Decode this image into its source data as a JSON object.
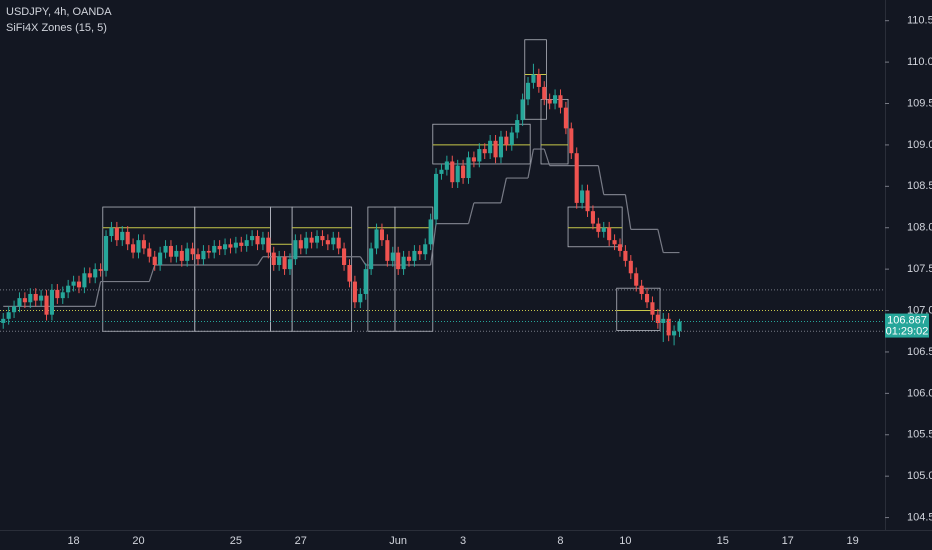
{
  "chart_data": {
    "type": "candlestick",
    "title": "USDJPY, 4h, OANDA",
    "subtitle": "SiFi4X Zones (15, 5)",
    "countdown": "01:29:02",
    "up_color": "#26a69a",
    "down_color": "#ef5350",
    "categories": [
      null,
      null,
      null,
      null,
      null,
      null,
      null,
      null,
      null,
      null,
      null,
      null,
      null,
      "18",
      null,
      null,
      null,
      null,
      null,
      null,
      null,
      null,
      null,
      null,
      null,
      "20",
      null,
      null,
      null,
      null,
      null,
      null,
      null,
      null,
      null,
      null,
      null,
      null,
      null,
      null,
      null,
      null,
      null,
      "25",
      null,
      null,
      null,
      null,
      null,
      null,
      null,
      null,
      null,
      null,
      null,
      "27",
      null,
      null,
      null,
      null,
      null,
      null,
      null,
      null,
      null,
      null,
      null,
      null,
      null,
      null,
      null,
      null,
      null,
      "Jun",
      null,
      null,
      null,
      null,
      null,
      null,
      null,
      null,
      null,
      null,
      null,
      "3",
      null,
      null,
      null,
      null,
      null,
      null,
      null,
      null,
      null,
      null,
      null,
      null,
      null,
      null,
      null,
      null,
      null,
      "8",
      null,
      null,
      null,
      null,
      null,
      null,
      null,
      null,
      null,
      null,
      null,
      "10",
      null,
      null,
      null,
      null,
      null,
      null,
      null,
      null,
      null,
      null,
      null,
      null,
      null,
      null,
      null,
      null,
      null,
      "15",
      null,
      null,
      null,
      null,
      null,
      null,
      null,
      null,
      null,
      null,
      null,
      "17",
      null,
      null,
      null,
      null,
      null,
      null,
      null,
      null,
      null,
      null,
      null,
      "19",
      null,
      null,
      null,
      null,
      null,
      null
    ],
    "open": [
      106.85,
      106.9,
      106.98,
      107.05,
      107.15,
      107.1,
      107.2,
      107.12,
      107.18,
      106.95,
      107.25,
      107.15,
      107.22,
      107.3,
      107.35,
      107.28,
      107.45,
      107.4,
      107.5,
      107.48,
      107.9,
      108.0,
      107.85,
      107.95,
      107.8,
      107.7,
      107.85,
      107.75,
      107.65,
      107.55,
      107.7,
      107.78,
      107.65,
      107.72,
      107.6,
      107.75,
      107.68,
      107.62,
      107.72,
      107.7,
      107.78,
      107.74,
      107.8,
      107.76,
      107.82,
      107.78,
      107.85,
      107.9,
      107.8,
      107.88,
      107.7,
      107.55,
      107.65,
      107.5,
      107.62,
      107.85,
      107.75,
      107.88,
      107.82,
      107.9,
      107.85,
      107.8,
      107.88,
      107.75,
      107.55,
      107.35,
      107.1,
      107.2,
      107.5,
      107.75,
      107.98,
      107.85,
      107.6,
      107.7,
      107.5,
      107.65,
      107.6,
      107.72,
      107.68,
      107.8,
      108.1,
      108.65,
      108.7,
      108.8,
      108.55,
      108.75,
      108.6,
      108.85,
      108.8,
      108.95,
      108.9,
      109.05,
      108.85,
      109.1,
      109.0,
      109.15,
      109.3,
      109.55,
      109.75,
      109.85,
      109.7,
      109.55,
      109.5,
      109.6,
      109.45,
      109.2,
      108.9,
      108.3,
      108.45,
      108.2,
      108.05,
      107.95,
      108.0,
      107.85,
      107.8,
      107.72,
      107.6,
      107.45,
      107.3,
      107.2,
      107.1,
      106.95,
      106.85,
      106.9,
      106.7,
      106.75,
      null,
      null,
      null,
      null,
      null,
      null,
      null,
      null,
      null,
      null,
      null,
      null,
      null,
      null,
      null,
      null,
      null,
      null,
      null,
      null,
      null,
      null,
      null,
      null,
      null,
      null,
      null,
      null,
      null,
      null,
      null,
      null,
      null,
      null,
      null,
      null,
      null,
      null
    ],
    "high": [
      106.97,
      107.05,
      107.12,
      107.22,
      107.22,
      107.27,
      107.27,
      107.25,
      107.25,
      107.32,
      107.32,
      107.29,
      107.37,
      107.42,
      107.42,
      107.52,
      107.52,
      107.57,
      107.57,
      107.97,
      108.07,
      108.07,
      108.02,
      108.02,
      107.87,
      107.92,
      107.92,
      107.82,
      107.72,
      107.77,
      107.85,
      107.85,
      107.79,
      107.79,
      107.82,
      107.82,
      107.75,
      107.79,
      107.79,
      107.85,
      107.85,
      107.87,
      107.87,
      107.89,
      107.89,
      107.92,
      107.97,
      107.97,
      107.95,
      107.95,
      107.77,
      107.72,
      107.72,
      107.69,
      107.92,
      107.92,
      107.95,
      107.95,
      107.97,
      107.97,
      107.92,
      107.95,
      107.95,
      107.82,
      107.62,
      107.42,
      107.27,
      107.57,
      107.82,
      108.05,
      108.05,
      107.92,
      107.77,
      107.77,
      107.72,
      107.72,
      107.79,
      107.79,
      107.87,
      108.17,
      108.72,
      108.77,
      108.87,
      108.87,
      108.82,
      108.82,
      108.92,
      108.92,
      109.02,
      109.02,
      109.12,
      109.12,
      109.17,
      109.17,
      109.22,
      109.37,
      109.62,
      109.82,
      109.98,
      109.92,
      109.77,
      109.62,
      109.67,
      109.67,
      109.52,
      109.27,
      108.97,
      108.52,
      108.52,
      108.27,
      108.12,
      108.07,
      108.07,
      107.92,
      107.87,
      107.79,
      107.67,
      107.52,
      107.37,
      107.27,
      107.17,
      107.02,
      106.97,
      106.97,
      106.82,
      106.9,
      null,
      null,
      null,
      null,
      null,
      null,
      null,
      null,
      null,
      null,
      null,
      null,
      null,
      null,
      null,
      null,
      null,
      null,
      null,
      null,
      null,
      null,
      null,
      null,
      null,
      null,
      null,
      null,
      null,
      null,
      null,
      null,
      null,
      null,
      null,
      null,
      null,
      null
    ],
    "low": [
      106.78,
      106.83,
      106.91,
      106.98,
      107.03,
      107.03,
      107.05,
      107.05,
      106.88,
      106.88,
      107.08,
      107.08,
      107.15,
      107.23,
      107.21,
      107.21,
      107.33,
      107.33,
      107.41,
      107.41,
      107.83,
      107.78,
      107.78,
      107.73,
      107.63,
      107.63,
      107.68,
      107.58,
      107.48,
      107.48,
      107.63,
      107.58,
      107.58,
      107.53,
      107.53,
      107.61,
      107.55,
      107.55,
      107.63,
      107.63,
      107.67,
      107.67,
      107.69,
      107.69,
      107.71,
      107.71,
      107.78,
      107.73,
      107.73,
      107.63,
      107.48,
      107.48,
      107.43,
      107.43,
      107.55,
      107.68,
      107.68,
      107.75,
      107.75,
      107.78,
      107.73,
      107.73,
      107.68,
      107.48,
      107.28,
      107.03,
      107.03,
      107.13,
      107.43,
      107.68,
      107.78,
      107.53,
      107.53,
      107.43,
      107.43,
      107.53,
      107.53,
      107.61,
      107.61,
      107.73,
      108.03,
      108.58,
      108.63,
      108.48,
      108.48,
      108.53,
      108.53,
      108.73,
      108.73,
      108.83,
      108.83,
      108.78,
      108.78,
      108.93,
      108.93,
      109.08,
      109.23,
      109.48,
      109.68,
      109.63,
      109.48,
      109.43,
      109.43,
      109.38,
      109.13,
      108.83,
      108.23,
      108.23,
      108.13,
      107.98,
      107.88,
      107.88,
      107.78,
      107.73,
      107.65,
      107.53,
      107.38,
      107.23,
      107.13,
      107.03,
      106.88,
      106.78,
      106.62,
      106.63,
      106.58,
      106.68,
      null,
      null,
      null,
      null,
      null,
      null,
      null,
      null,
      null,
      null,
      null,
      null,
      null,
      null,
      null,
      null,
      null,
      null,
      null,
      null,
      null,
      null,
      null,
      null,
      null,
      null,
      null,
      null,
      null,
      null,
      null,
      null,
      null,
      null,
      null,
      null,
      null,
      null
    ],
    "close": [
      106.9,
      106.98,
      107.05,
      107.15,
      107.1,
      107.2,
      107.12,
      107.18,
      106.95,
      107.25,
      107.15,
      107.22,
      107.3,
      107.35,
      107.28,
      107.45,
      107.4,
      107.5,
      107.48,
      107.9,
      108.0,
      107.85,
      107.95,
      107.8,
      107.7,
      107.85,
      107.75,
      107.65,
      107.55,
      107.7,
      107.78,
      107.65,
      107.72,
      107.6,
      107.75,
      107.68,
      107.62,
      107.72,
      107.7,
      107.78,
      107.74,
      107.8,
      107.76,
      107.82,
      107.78,
      107.85,
      107.9,
      107.8,
      107.88,
      107.7,
      107.55,
      107.65,
      107.5,
      107.62,
      107.85,
      107.75,
      107.88,
      107.82,
      107.9,
      107.85,
      107.8,
      107.88,
      107.75,
      107.55,
      107.35,
      107.1,
      107.2,
      107.5,
      107.75,
      107.98,
      107.85,
      107.6,
      107.7,
      107.5,
      107.65,
      107.6,
      107.72,
      107.68,
      107.8,
      108.1,
      108.65,
      108.7,
      108.8,
      108.55,
      108.75,
      108.6,
      108.85,
      108.8,
      108.95,
      108.9,
      109.05,
      108.85,
      109.1,
      109.0,
      109.15,
      109.3,
      109.55,
      109.75,
      109.85,
      109.7,
      109.55,
      109.5,
      109.6,
      109.45,
      109.2,
      108.9,
      108.3,
      108.45,
      108.2,
      108.05,
      107.95,
      108.0,
      107.85,
      107.8,
      107.72,
      107.6,
      107.45,
      107.3,
      107.2,
      107.1,
      106.95,
      106.85,
      106.9,
      106.7,
      106.75,
      106.867,
      null,
      null,
      null,
      null,
      null,
      null,
      null,
      null,
      null,
      null,
      null,
      null,
      null,
      null,
      null,
      null,
      null,
      null,
      null,
      null,
      null,
      null,
      null,
      null,
      null,
      null,
      null,
      null,
      null,
      null,
      null,
      null,
      null,
      null,
      null,
      null,
      null,
      null
    ],
    "ylim": [
      104.35,
      110.75
    ],
    "yticks": [
      {
        "value": 104.5,
        "label": "104.500"
      },
      {
        "value": 105,
        "label": "105.000"
      },
      {
        "value": 105.5,
        "label": "105.500"
      },
      {
        "value": 106,
        "label": "106.000"
      },
      {
        "value": 106.5,
        "label": "106.500"
      },
      {
        "value": 107,
        "label": "107.000"
      },
      {
        "value": 107.5,
        "label": "107.500"
      },
      {
        "value": 108,
        "label": "108.000"
      },
      {
        "value": 108.5,
        "label": "108.500"
      },
      {
        "value": 109,
        "label": "109.000"
      },
      {
        "value": 109.5,
        "label": "109.500"
      },
      {
        "value": 110,
        "label": "110.000"
      },
      {
        "value": 110.5,
        "label": "110.500"
      }
    ],
    "zones": [
      {
        "from": 19,
        "to": 35,
        "top": 108.25,
        "mid": 108.0,
        "bottom": 106.75
      },
      {
        "from": 36,
        "to": 49,
        "top": 108.25,
        "mid": 108.0,
        "bottom": 106.75
      },
      {
        "from": 50,
        "to": 53,
        "top": 108.25,
        "mid": 107.8,
        "bottom": 106.75
      },
      {
        "from": 54,
        "to": 64,
        "top": 108.25,
        "mid": 108.0,
        "bottom": 106.75
      },
      {
        "from": 68,
        "to": 72,
        "top": 108.25,
        "mid": 108.0,
        "bottom": 106.75
      },
      {
        "from": 73,
        "to": 79,
        "top": 108.25,
        "mid": 108.0,
        "bottom": 106.75
      },
      {
        "from": 80,
        "to": 97,
        "top": 109.25,
        "mid": 109.0,
        "bottom": 108.77
      },
      {
        "from": 97,
        "to": 100,
        "top": 110.27,
        "mid": 109.85,
        "bottom": 109.31
      },
      {
        "from": 100,
        "to": 104,
        "top": 109.55,
        "mid": 109.0,
        "bottom": 108.77
      },
      {
        "from": 105,
        "to": 114,
        "top": 108.25,
        "mid": 108.0,
        "bottom": 107.77
      },
      {
        "from": 114,
        "to": 121,
        "top": 107.27,
        "mid": 107.0,
        "bottom": 106.76
      }
    ],
    "zone_color": "#b2b5be",
    "mid_color": "#c8c84a",
    "trail_color": "#787b86",
    "trail": [
      {
        "from": 0,
        "to": 17,
        "value": 107.05
      },
      {
        "from": 18,
        "to": 27,
        "value": 107.35
      },
      {
        "from": 28,
        "to": 47,
        "value": 107.55
      },
      {
        "from": 48,
        "to": 66,
        "value": 107.65
      },
      {
        "from": 67,
        "to": 79,
        "value": 107.55
      },
      {
        "from": 80,
        "to": 86,
        "value": 108.05
      },
      {
        "from": 87,
        "to": 92,
        "value": 108.3
      },
      {
        "from": 93,
        "to": 97,
        "value": 108.6
      },
      {
        "from": 98,
        "to": 100,
        "value": 108.95
      },
      {
        "from": 101,
        "to": 110,
        "value": 108.75
      },
      {
        "from": 111,
        "to": 115,
        "value": 108.4
      },
      {
        "from": 116,
        "to": 121,
        "value": 107.98
      },
      {
        "from": 122,
        "to": 125,
        "value": 107.7
      }
    ],
    "levels": [
      {
        "value": 107.25,
        "color": "#787b86"
      },
      {
        "value": 107.0,
        "color": "#c8c84a"
      },
      {
        "value": 106.75,
        "color": "#787b86"
      }
    ]
  }
}
